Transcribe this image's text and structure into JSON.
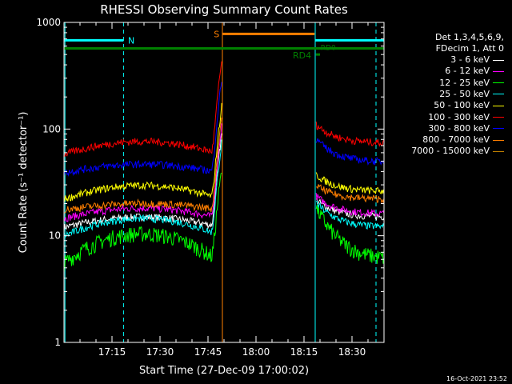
{
  "chart_data": {
    "type": "line",
    "title": "RHESSI Observing Summary Count Rates",
    "xlabel": "Start Time (27-Dec-09 17:00:02)",
    "ylabel": "Count Rate (s⁻¹ detector⁻¹)",
    "yscale": "log",
    "ylim": [
      1,
      1000
    ],
    "xlim_minutes": [
      0,
      100
    ],
    "x_ticks": [
      "17:15",
      "17:30",
      "17:45",
      "18:00",
      "18:15",
      "18:30"
    ],
    "x_tick_minutes": [
      15,
      30,
      45,
      60,
      75,
      90
    ],
    "y_ticks": [
      "1",
      "10",
      "100",
      "1000"
    ],
    "y_tick_values": [
      1,
      10,
      100,
      1000
    ],
    "legend_header": [
      "Det 1,3,4,5,6,9,",
      "FDecim 1, Att 0"
    ],
    "footer": "16-Oct-2021 23:52",
    "gaps_minutes": [
      [
        49.5,
        78.5
      ]
    ],
    "series": [
      {
        "name": "3 - 6 keV",
        "color": "#ffffff",
        "base": 12,
        "arch": 1.25,
        "post_peak": 22,
        "post_end": 15
      },
      {
        "name": "6 - 12 keV",
        "color": "#ff00ff",
        "base": 14.5,
        "arch": 1.25,
        "post_peak": 24,
        "post_end": 16
      },
      {
        "name": "12 - 25 keV",
        "color": "#00ff00",
        "base": 5.5,
        "arch": 1.9,
        "post_peak": 19,
        "post_end": 6
      },
      {
        "name": "25 - 50 keV",
        "color": "#00ffff",
        "base": 10,
        "arch": 1.45,
        "post_peak": 21,
        "post_end": 12
      },
      {
        "name": "50 - 100 keV",
        "color": "#ffff00",
        "base": 22,
        "arch": 1.35,
        "post_peak": 38,
        "post_end": 26
      },
      {
        "name": "100 - 300 keV",
        "color": "#ff0000",
        "base": 58,
        "arch": 1.32,
        "post_peak": 112,
        "post_end": 74
      },
      {
        "name": "300 - 800 keV",
        "color": "#0000ff",
        "base": 39,
        "arch": 1.2,
        "post_peak": 82,
        "post_end": 49
      },
      {
        "name": "800 - 7000 keV",
        "color": "#ff7f00",
        "base": 17.5,
        "arch": 1.15,
        "post_peak": 30,
        "post_end": 22
      },
      {
        "name": "7000 - 15000 keV",
        "color": "#c08000",
        "base": 0,
        "arch": 1,
        "post_peak": 0,
        "post_end": 0
      }
    ],
    "annotations": {
      "night_label": "N",
      "saa_label": "S",
      "rd0_label": "RD0",
      "rd4_label": "RD4",
      "colors": {
        "night": "#00ffff",
        "saa": "#ff7f00",
        "decim": "#008000",
        "axes": "#ffffff"
      }
    }
  }
}
